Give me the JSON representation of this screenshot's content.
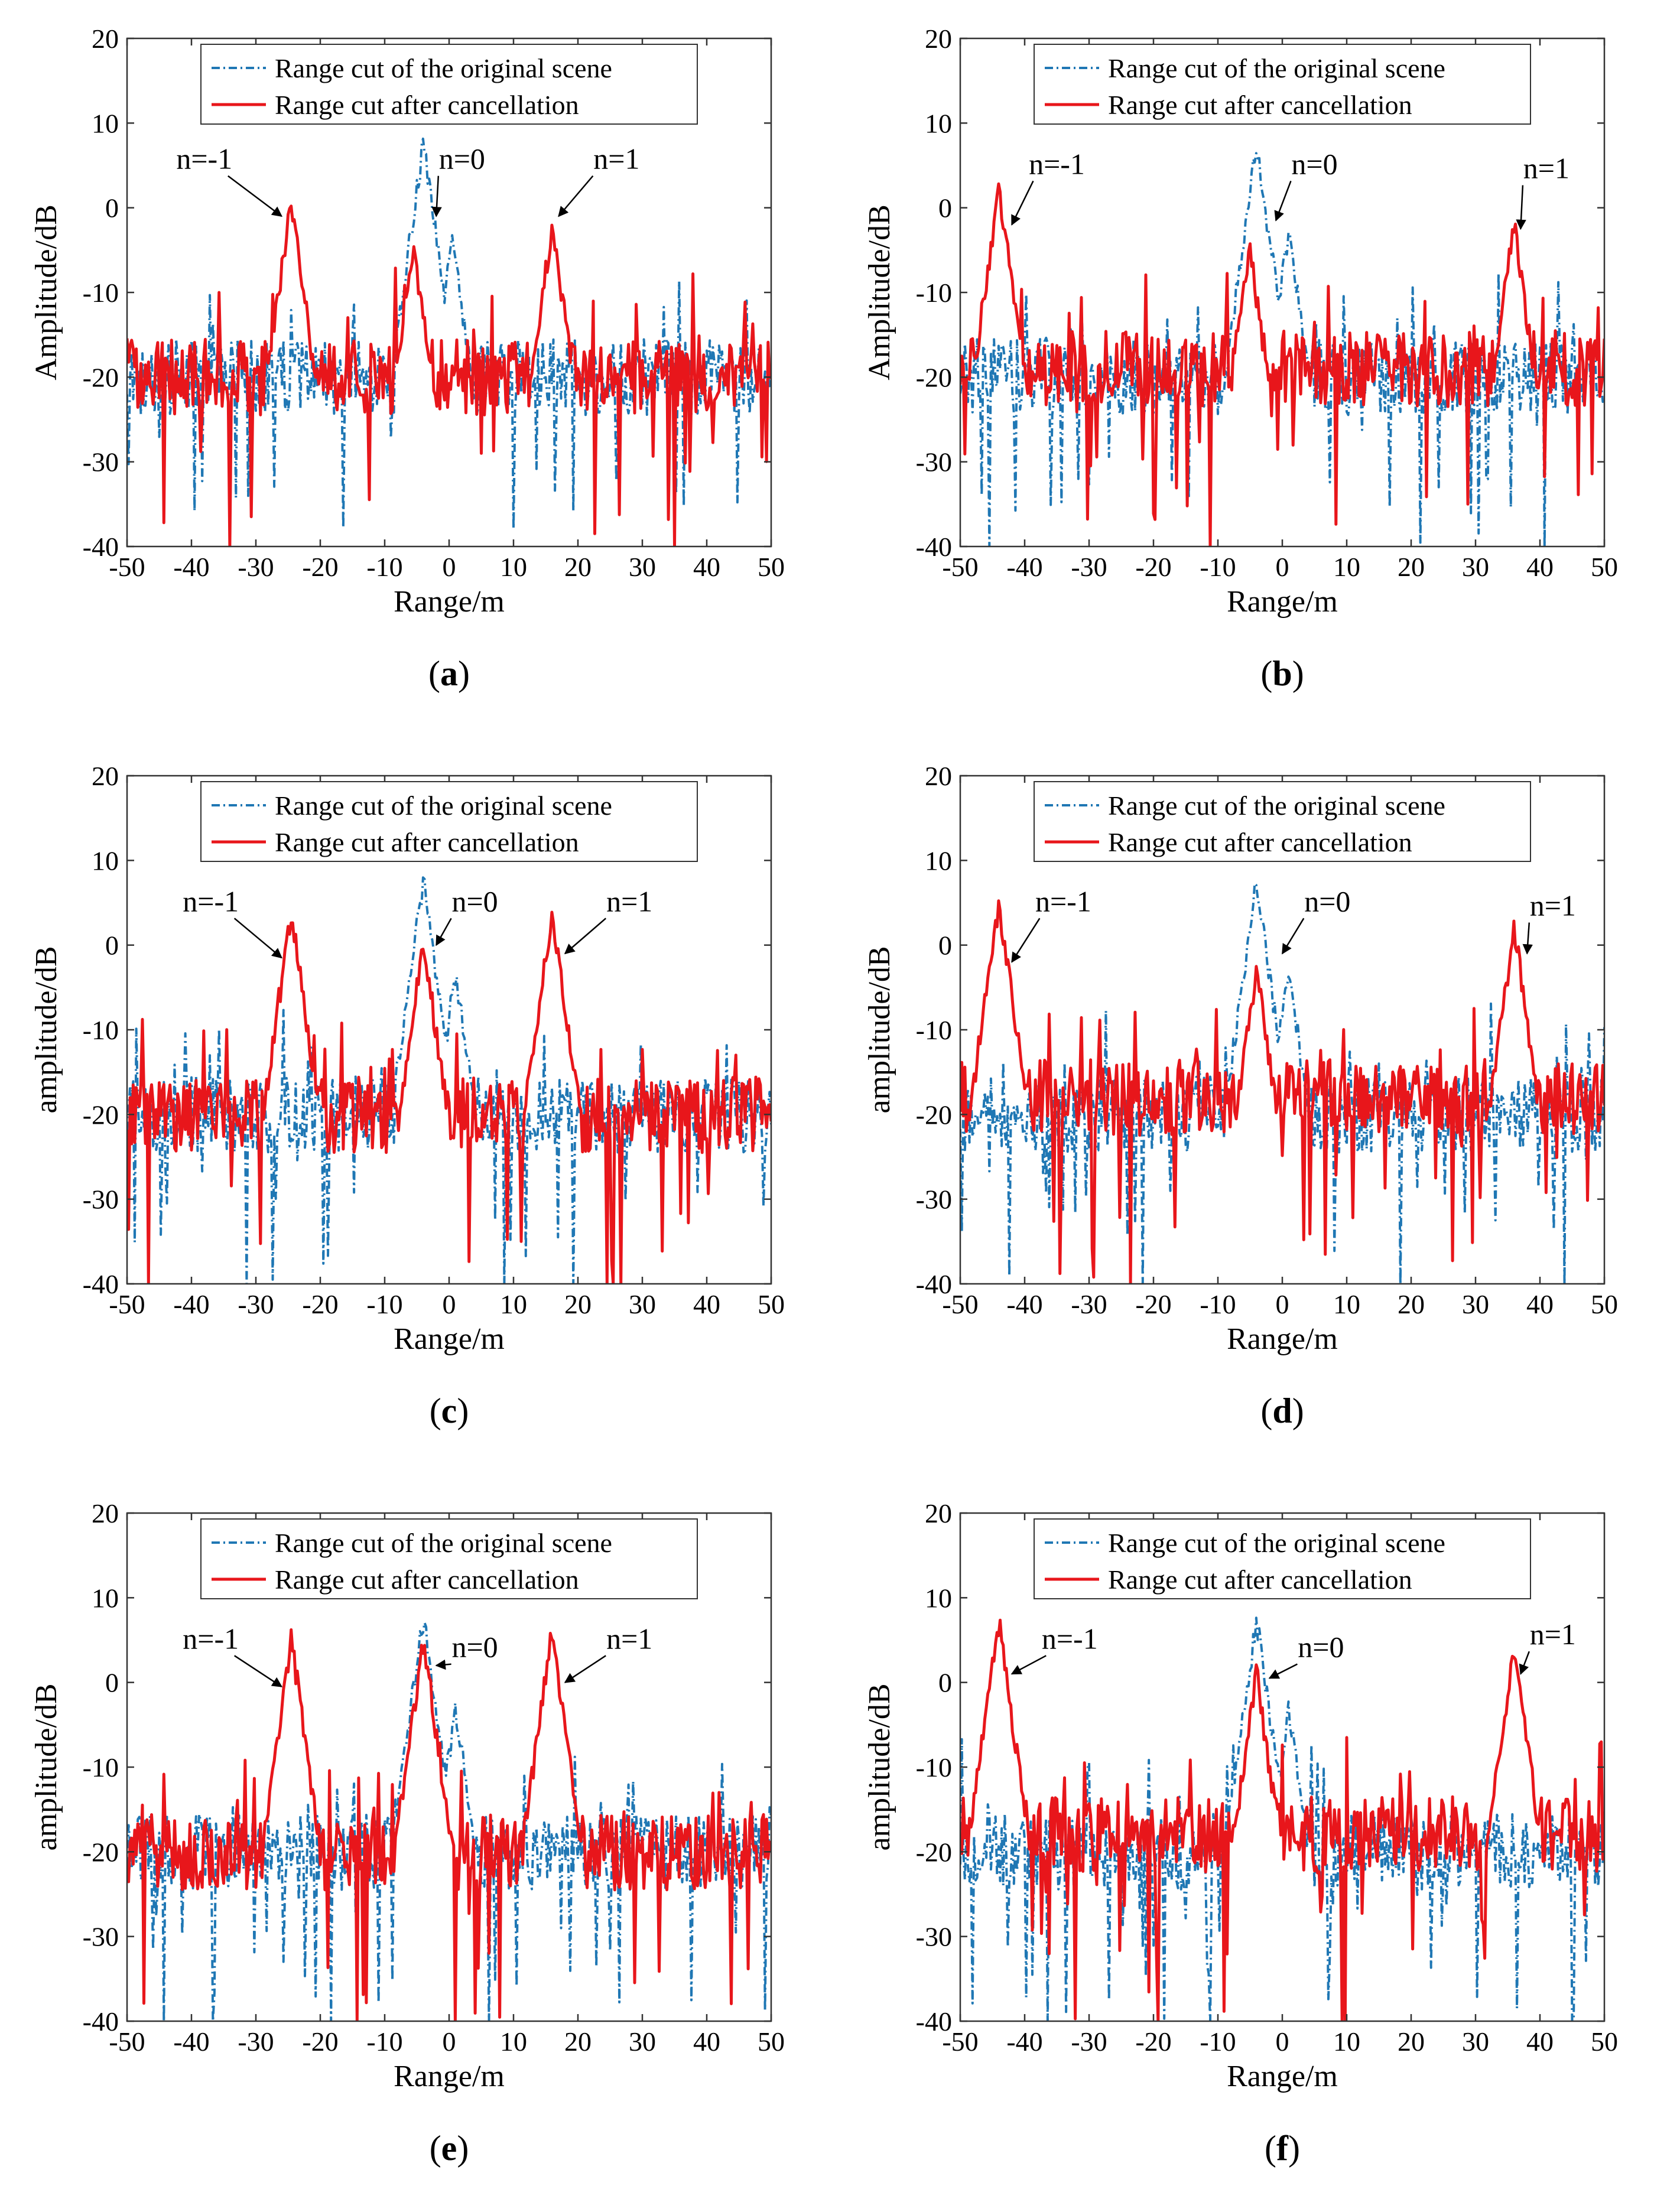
{
  "figure": {
    "panels": [
      {
        "id": "a",
        "caption_letter": "a",
        "ylabel": "Amplitude/dB",
        "annotations": [
          {
            "text": "n=-1",
            "text_xy": [
              -38,
              4.6
            ],
            "arrow_to": [
              -26,
              -1.0
            ]
          },
          {
            "text": "n=0",
            "text_xy": [
              2,
              4.6
            ],
            "arrow_to": [
              -2,
              -1.0
            ]
          },
          {
            "text": "n=1",
            "text_xy": [
              26,
              4.6
            ],
            "arrow_to": [
              17,
              -1.0
            ]
          }
        ]
      },
      {
        "id": "b",
        "caption_letter": "b",
        "ylabel": "Amplitude/dB",
        "annotations": [
          {
            "text": "n=-1",
            "text_xy": [
              -35,
              4.0
            ],
            "arrow_to": [
              -42,
              -2.0
            ]
          },
          {
            "text": "n=0",
            "text_xy": [
              5,
              4.0
            ],
            "arrow_to": [
              -1,
              -1.5
            ]
          },
          {
            "text": "n=1",
            "text_xy": [
              41,
              3.5
            ],
            "arrow_to": [
              37,
              -2.5
            ]
          }
        ]
      },
      {
        "id": "c",
        "caption_letter": "c",
        "ylabel": "amplitude/dB",
        "annotations": [
          {
            "text": "n=-1",
            "text_xy": [
              -37,
              4.0
            ],
            "arrow_to": [
              -26,
              -1.5
            ]
          },
          {
            "text": "n=0",
            "text_xy": [
              4,
              4.0
            ],
            "arrow_to": [
              -2,
              0.0
            ]
          },
          {
            "text": "n=1",
            "text_xy": [
              28,
              4.0
            ],
            "arrow_to": [
              18,
              -1.0
            ]
          }
        ]
      },
      {
        "id": "d",
        "caption_letter": "d",
        "ylabel": "amplitude/dB",
        "annotations": [
          {
            "text": "n=-1",
            "text_xy": [
              -34,
              4.0
            ],
            "arrow_to": [
              -42,
              -2.0
            ]
          },
          {
            "text": "n=0",
            "text_xy": [
              7,
              4.0
            ],
            "arrow_to": [
              0,
              -1.0
            ]
          },
          {
            "text": "n=1",
            "text_xy": [
              42,
              3.5
            ],
            "arrow_to": [
              38,
              -1.0
            ]
          }
        ]
      },
      {
        "id": "e",
        "caption_letter": "e",
        "ylabel": "amplitude/dB",
        "annotations": [
          {
            "text": "n=-1",
            "text_xy": [
              -37,
              4.0
            ],
            "arrow_to": [
              -26,
              -0.5
            ]
          },
          {
            "text": "n=0",
            "text_xy": [
              4,
              3.0
            ],
            "arrow_to": [
              -2,
              2.0
            ]
          },
          {
            "text": "n=1",
            "text_xy": [
              28,
              4.0
            ],
            "arrow_to": [
              18,
              0.0
            ]
          }
        ]
      },
      {
        "id": "f",
        "caption_letter": "f",
        "ylabel": "amplitude/dB",
        "annotations": [
          {
            "text": "n=-1",
            "text_xy": [
              -33,
              4.0
            ],
            "arrow_to": [
              -42,
              1.0
            ]
          },
          {
            "text": "n=0",
            "text_xy": [
              6,
              3.0
            ],
            "arrow_to": [
              -2,
              0.5
            ]
          },
          {
            "text": "n=1",
            "text_xy": [
              42,
              4.5
            ],
            "arrow_to": [
              37,
              1.0
            ]
          }
        ]
      }
    ]
  },
  "chart_data": [
    {
      "panel": "a",
      "type": "line",
      "xlabel": "Range/m",
      "ylabel": "Amplitude/dB",
      "xlim": [
        -50,
        50
      ],
      "ylim": [
        -40,
        20
      ],
      "xticks": [
        -50,
        -40,
        -30,
        -20,
        -10,
        0,
        10,
        20,
        30,
        40,
        50
      ],
      "yticks": [
        -40,
        -30,
        -20,
        -10,
        0,
        10,
        20
      ],
      "legend": {
        "location": "top-center",
        "entries": [
          "Range cut of the original scene",
          "Range cut after cancellation"
        ]
      },
      "series": [
        {
          "name": "Range cut of the original scene",
          "color": "#1f77b4",
          "style": "dash-dot",
          "peaks": [
            {
              "x": -4,
              "y": 7.5
            },
            {
              "x": -2,
              "y": -4
            },
            {
              "x": 0.5,
              "y": -4
            }
          ],
          "noise_floor": -20
        },
        {
          "name": "Range cut after cancellation",
          "color": "#e8161b",
          "style": "solid",
          "peaks": [
            {
              "x": -24.5,
              "y": 0.5
            },
            {
              "x": -5.5,
              "y": -5
            },
            {
              "x": 16,
              "y": -2
            }
          ],
          "noise_floor": -20
        }
      ]
    },
    {
      "panel": "b",
      "type": "line",
      "xlabel": "Range/m",
      "ylabel": "Amplitude/dB",
      "xlim": [
        -50,
        50
      ],
      "ylim": [
        -40,
        20
      ],
      "xticks": [
        -50,
        -40,
        -30,
        -20,
        -10,
        0,
        10,
        20,
        30,
        40,
        50
      ],
      "yticks": [
        -40,
        -30,
        -20,
        -10,
        0,
        10,
        20
      ],
      "legend": {
        "location": "top-center",
        "entries": [
          "Range cut of the original scene",
          "Range cut after cancellation"
        ]
      },
      "series": [
        {
          "name": "Range cut of the original scene",
          "color": "#1f77b4",
          "style": "dash-dot",
          "peaks": [
            {
              "x": -4,
              "y": 7.5
            },
            {
              "x": -2,
              "y": -4
            },
            {
              "x": 1,
              "y": -3
            }
          ],
          "noise_floor": -20
        },
        {
          "name": "Range cut after cancellation",
          "color": "#e8161b",
          "style": "solid",
          "peaks": [
            {
              "x": -44,
              "y": 2
            },
            {
              "x": -5,
              "y": -5
            },
            {
              "x": 36,
              "y": -2
            }
          ],
          "noise_floor": -19
        }
      ]
    },
    {
      "panel": "c",
      "type": "line",
      "xlabel": "Range/m",
      "ylabel": "amplitude/dB",
      "xlim": [
        -50,
        50
      ],
      "ylim": [
        -40,
        20
      ],
      "xticks": [
        -50,
        -40,
        -30,
        -20,
        -10,
        0,
        10,
        20,
        30,
        40,
        50
      ],
      "yticks": [
        -40,
        -30,
        -20,
        -10,
        0,
        10,
        20
      ],
      "legend": {
        "location": "top-center",
        "entries": [
          "Range cut of the original scene",
          "Range cut after cancellation"
        ]
      },
      "series": [
        {
          "name": "Range cut of the original scene",
          "color": "#1f77b4",
          "style": "dash-dot",
          "peaks": [
            {
              "x": -4,
              "y": 7.5
            },
            {
              "x": -2,
              "y": -4
            },
            {
              "x": 1,
              "y": -3
            }
          ],
          "noise_floor": -20
        },
        {
          "name": "Range cut after cancellation",
          "color": "#e8161b",
          "style": "solid",
          "peaks": [
            {
              "x": -24.5,
              "y": 4
            },
            {
              "x": -4,
              "y": 0.5
            },
            {
              "x": 16,
              "y": 4
            }
          ],
          "noise_floor": -20
        }
      ]
    },
    {
      "panel": "d",
      "type": "line",
      "xlabel": "Range/m",
      "ylabel": "amplitude/dB",
      "xlim": [
        -50,
        50
      ],
      "ylim": [
        -40,
        20
      ],
      "xticks": [
        -50,
        -40,
        -30,
        -20,
        -10,
        0,
        10,
        20,
        30,
        40,
        50
      ],
      "yticks": [
        -40,
        -30,
        -20,
        -10,
        0,
        10,
        20
      ],
      "legend": {
        "location": "top-center",
        "entries": [
          "Range cut of the original scene",
          "Range cut after cancellation"
        ]
      },
      "series": [
        {
          "name": "Range cut of the original scene",
          "color": "#1f77b4",
          "style": "dash-dot",
          "peaks": [
            {
              "x": -4,
              "y": 7.5
            },
            {
              "x": -2,
              "y": -4
            },
            {
              "x": 1,
              "y": -3
            }
          ],
          "noise_floor": -20
        },
        {
          "name": "Range cut after cancellation",
          "color": "#e8161b",
          "style": "solid",
          "peaks": [
            {
              "x": -44,
              "y": 5
            },
            {
              "x": -4,
              "y": -3
            },
            {
              "x": 36,
              "y": 2
            }
          ],
          "noise_floor": -18
        }
      ]
    },
    {
      "panel": "e",
      "type": "line",
      "xlabel": "Range/m",
      "ylabel": "amplitude/dB",
      "xlim": [
        -50,
        50
      ],
      "ylim": [
        -40,
        20
      ],
      "xticks": [
        -50,
        -40,
        -30,
        -20,
        -10,
        0,
        10,
        20,
        30,
        40,
        50
      ],
      "yticks": [
        -40,
        -30,
        -20,
        -10,
        0,
        10,
        20
      ],
      "legend": {
        "location": "top-center",
        "entries": [
          "Range cut of the original scene",
          "Range cut after cancellation"
        ]
      },
      "series": [
        {
          "name": "Range cut of the original scene",
          "color": "#1f77b4",
          "style": "dash-dot",
          "peaks": [
            {
              "x": -4,
              "y": 7.5
            },
            {
              "x": -2,
              "y": -4
            },
            {
              "x": 1,
              "y": -3
            }
          ],
          "noise_floor": -20
        },
        {
          "name": "Range cut after cancellation",
          "color": "#e8161b",
          "style": "solid",
          "peaks": [
            {
              "x": -24.5,
              "y": 5
            },
            {
              "x": -4,
              "y": 5
            },
            {
              "x": 16,
              "y": 6
            }
          ],
          "noise_floor": -20
        }
      ]
    },
    {
      "panel": "f",
      "type": "line",
      "xlabel": "Range/m",
      "ylabel": "amplitude/dB",
      "xlim": [
        -50,
        50
      ],
      "ylim": [
        -40,
        20
      ],
      "xticks": [
        -50,
        -40,
        -30,
        -20,
        -10,
        0,
        10,
        20,
        30,
        40,
        50
      ],
      "yticks": [
        -40,
        -30,
        -20,
        -10,
        0,
        10,
        20
      ],
      "legend": {
        "location": "top-center",
        "entries": [
          "Range cut of the original scene",
          "Range cut after cancellation"
        ]
      },
      "series": [
        {
          "name": "Range cut of the original scene",
          "color": "#1f77b4",
          "style": "dash-dot",
          "peaks": [
            {
              "x": -4,
              "y": 7.5
            },
            {
              "x": -2,
              "y": -4
            },
            {
              "x": 1,
              "y": -3
            }
          ],
          "noise_floor": -20
        },
        {
          "name": "Range cut after cancellation",
          "color": "#e8161b",
          "style": "solid",
          "peaks": [
            {
              "x": -44,
              "y": 7
            },
            {
              "x": -4,
              "y": 1
            },
            {
              "x": 36,
              "y": 4
            }
          ],
          "noise_floor": -18
        }
      ]
    }
  ]
}
